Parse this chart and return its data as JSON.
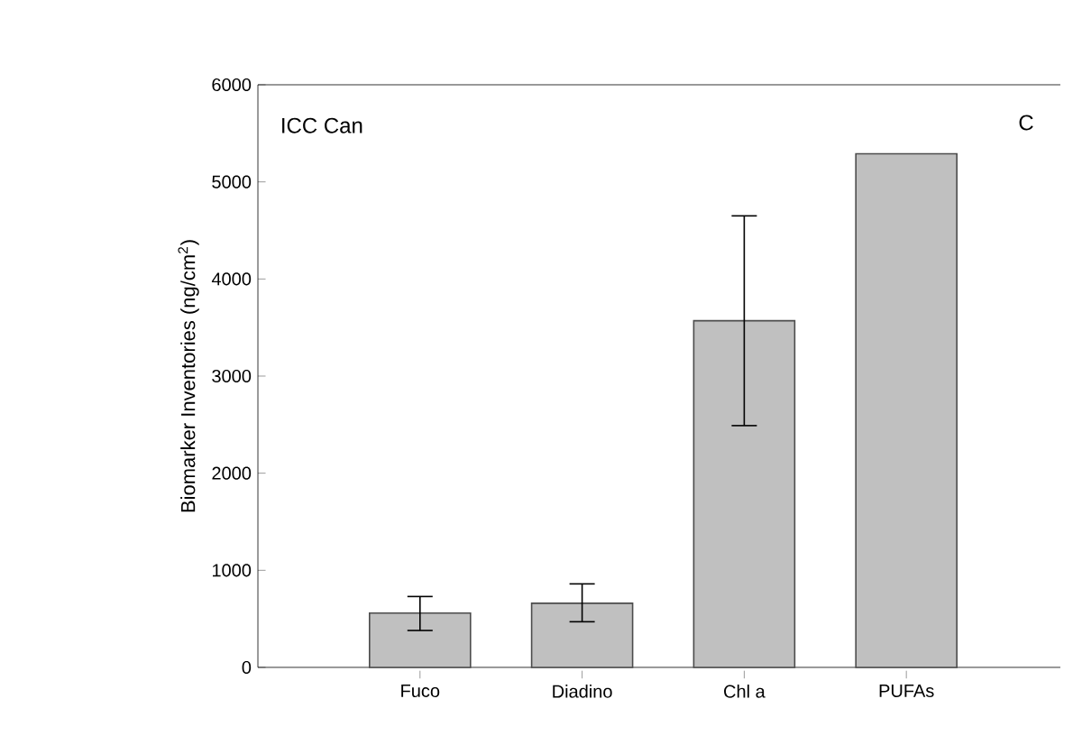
{
  "chart_data": {
    "type": "bar",
    "ylabel": "Biomarker Inventories (ng/cm$^{2}$)",
    "categories": [
      "Fuco",
      "Diadino",
      "Chl a",
      "PUFAs"
    ],
    "values": [
      560,
      660,
      3570,
      5290
    ],
    "errors": [
      [
        380,
        730
      ],
      [
        470,
        860
      ],
      [
        2490,
        4650
      ],
      null
    ],
    "color": "#c0c0c0",
    "ylim": [
      0,
      6000
    ],
    "yticks": [
      0,
      1000,
      2000,
      3000,
      4000,
      5000,
      6000
    ],
    "annotations": [
      "ICC Can",
      "C"
    ]
  }
}
